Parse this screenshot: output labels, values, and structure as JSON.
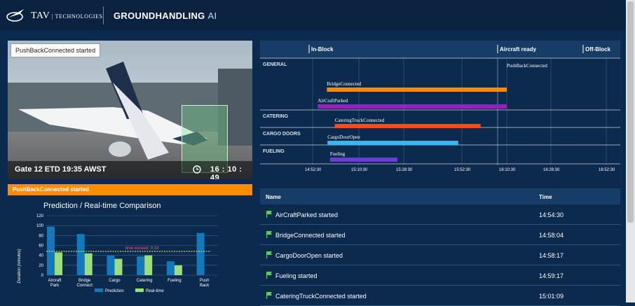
{
  "header": {
    "brand_main": "TAV",
    "brand_sub": "TECHNOLOGIES",
    "product_main": "GROUNDHANDLING",
    "product_sub": "AI"
  },
  "camera": {
    "tag": "PushBackConnected started",
    "gate_info": "Gate 12 ETD 19:35 AWST",
    "clock": "16 : 10 : 49"
  },
  "status_bar": "PushBackConnected started",
  "prediction": {
    "title": "Prediction / Real-time Comparison",
    "ylabel": "Duration (minutes)",
    "legend": [
      "Prediction",
      "Real-time"
    ],
    "annotation": "time exceed: 9:16"
  },
  "chart_data": {
    "type": "bar",
    "categories": [
      "Aircraft Park",
      "Bridge Connect",
      "Cargo",
      "Catering",
      "Fueling",
      "Push Back"
    ],
    "series": [
      {
        "name": "Prediction",
        "values": [
          98,
          83,
          40,
          38,
          28,
          85
        ]
      },
      {
        "name": "Real-time",
        "values": [
          46,
          44,
          33,
          40,
          20,
          null
        ]
      }
    ],
    "yticks": [
      0,
      20,
      40,
      60,
      80,
      100,
      120
    ],
    "ylim": [
      0,
      120
    ],
    "threshold": 48,
    "colors": {
      "prediction": "#1379bd",
      "realtime": "#9bdc7c",
      "threshold": "#d4d43a"
    }
  },
  "timeline": {
    "milestones": [
      {
        "label": "In-Block"
      },
      {
        "label": "Aircraft ready"
      },
      {
        "label": "Off-Block"
      }
    ],
    "groups": [
      "GENERAL",
      "CATERING",
      "CARGO DOORS",
      "FUELING"
    ],
    "bars": [
      {
        "label": "PushBackConnected",
        "group": "GENERAL",
        "start": "16:10:30",
        "end": "16:10:30",
        "color": ""
      },
      {
        "label": "BridgeConnected",
        "group": "GENERAL",
        "start": "14:58:04",
        "end": "16:10:30",
        "color": "#ff8c00"
      },
      {
        "label": "AirCraftParked",
        "group": "GENERAL",
        "start": "14:54:30",
        "end": "16:10:30",
        "color": "#9b1fc0"
      },
      {
        "label": "CateringTruckConnected",
        "group": "CATERING",
        "start": "15:01:09",
        "end": "16:00:00",
        "color": "#ff4a14"
      },
      {
        "label": "CargoDoorOpen",
        "group": "CARGO DOORS",
        "start": "14:58:17",
        "end": "15:51:00",
        "color": "#38b6f0"
      },
      {
        "label": "Fueling",
        "group": "FUELING",
        "start": "14:59:17",
        "end": "15:26:00",
        "color": "#6a3bd6"
      }
    ],
    "ticks": [
      "14:52:30",
      "15:10:30",
      "15:28:30",
      "15:52:30",
      "16:10:30",
      "16:28:30",
      "16:52:30"
    ]
  },
  "events": {
    "col_name": "Name",
    "col_time": "Time",
    "rows": [
      {
        "name": "AirCraftParked started",
        "time": "14:54:30"
      },
      {
        "name": "BridgeConnected started",
        "time": "14:58:04"
      },
      {
        "name": "CargoDoorOpen started",
        "time": "14:58:17"
      },
      {
        "name": "Fueling started",
        "time": "14:59:17"
      },
      {
        "name": "CateringTruckConnected started",
        "time": "15:01:09"
      }
    ]
  }
}
